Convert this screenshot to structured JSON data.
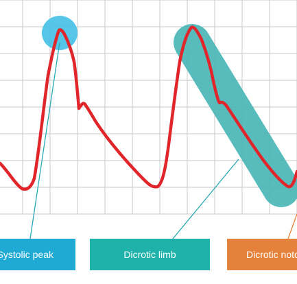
{
  "labels": {
    "systolic_peak": "Systolic peak",
    "dicrotic_limb": "Dicrotic limb",
    "dicrotic_notch": "Dicrotic notch"
  },
  "colors": {
    "grid": "#c8c8c8",
    "waveform": "#e0262b",
    "highlight_peak": "#4cc3e6",
    "highlight_limb": "#4fb8b8",
    "leader_line": "#2aa9b5",
    "systolic_box": "#1eaad2",
    "limb_box": "#1fb2aa",
    "notch_box": "#e5813a",
    "label_text": "#ffffff"
  }
}
